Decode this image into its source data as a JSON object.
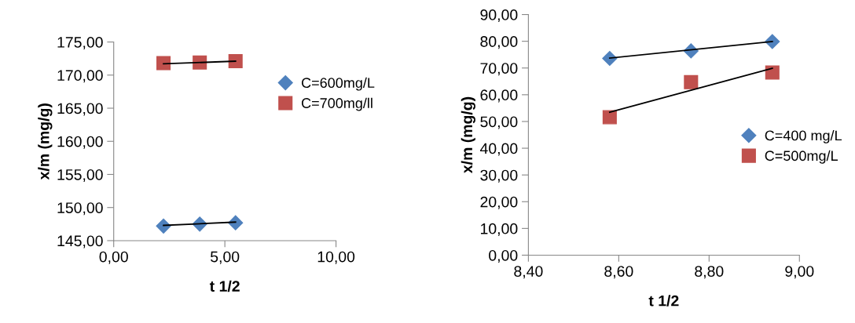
{
  "chart_data": [
    {
      "type": "scatter",
      "xlabel": "t 1/2",
      "ylabel": "x/m (mg/g)",
      "xlim": [
        0,
        10
      ],
      "ylim": [
        145,
        175
      ],
      "xticks": [
        {
          "value": 0,
          "label": "0,00"
        },
        {
          "value": 5,
          "label": "5,00"
        },
        {
          "value": 10,
          "label": "10,00"
        }
      ],
      "yticks": [
        {
          "value": 145,
          "label": "145,00"
        },
        {
          "value": 150,
          "label": "150,00"
        },
        {
          "value": 155,
          "label": "155,00"
        },
        {
          "value": 160,
          "label": "160,00"
        },
        {
          "value": 165,
          "label": "165,00"
        },
        {
          "value": 170,
          "label": "170,00"
        },
        {
          "value": 175,
          "label": "175,00"
        }
      ],
      "grid": false,
      "legend": "top right",
      "series": [
        {
          "name": "C=600mg/L",
          "color": "#4f81bd",
          "marker": "diamond",
          "x": [
            2.24,
            3.87,
            5.48
          ],
          "values": [
            147.2,
            147.5,
            147.7
          ]
        },
        {
          "name": "C=700mg/ll",
          "color": "#c0504d",
          "marker": "square",
          "x": [
            2.24,
            3.87,
            5.48
          ],
          "values": [
            171.8,
            171.9,
            172.1
          ]
        },
        {
          "type": "line",
          "color": "#000000",
          "marker": "none",
          "x": [
            2.24,
            5.48
          ],
          "values": [
            147.3,
            147.8
          ]
        },
        {
          "type": "line",
          "color": "#000000",
          "marker": "none",
          "x": [
            2.24,
            5.48
          ],
          "values": [
            171.7,
            172.1
          ]
        }
      ]
    },
    {
      "type": "scatter",
      "xlabel": "t 1/2",
      "ylabel": "x/m (mg/g)",
      "xlim": [
        8.4,
        9.0
      ],
      "ylim": [
        0,
        90
      ],
      "xticks": [
        {
          "value": 8.4,
          "label": "8,40"
        },
        {
          "value": 8.6,
          "label": "8,60"
        },
        {
          "value": 8.8,
          "label": "8,80"
        },
        {
          "value": 9.0,
          "label": "9,00"
        }
      ],
      "yticks": [
        {
          "value": 0,
          "label": "0,00"
        },
        {
          "value": 10,
          "label": "10,00"
        },
        {
          "value": 20,
          "label": "20,00"
        },
        {
          "value": 30,
          "label": "30,00"
        },
        {
          "value": 40,
          "label": "40,00"
        },
        {
          "value": 50,
          "label": "50,00"
        },
        {
          "value": 60,
          "label": "60,00"
        },
        {
          "value": 70,
          "label": "70,00"
        },
        {
          "value": 80,
          "label": "80,00"
        },
        {
          "value": 90,
          "label": "90,00"
        }
      ],
      "grid": false,
      "legend": "right",
      "series": [
        {
          "name": "C=400 mg/L",
          "color": "#4f81bd",
          "marker": "diamond",
          "x": [
            8.58,
            8.76,
            8.94
          ],
          "values": [
            73.6,
            76.4,
            79.9
          ]
        },
        {
          "name": "C=500mg/L",
          "color": "#c0504d",
          "marker": "square",
          "x": [
            8.58,
            8.76,
            8.94
          ],
          "values": [
            51.6,
            64.7,
            68.3
          ]
        },
        {
          "type": "line",
          "color": "#000000",
          "marker": "none",
          "x": [
            8.58,
            8.94
          ],
          "values": [
            73.7,
            79.9
          ]
        },
        {
          "type": "line",
          "color": "#000000",
          "marker": "none",
          "x": [
            8.58,
            8.94
          ],
          "values": [
            53.5,
            69.9
          ]
        }
      ]
    }
  ]
}
